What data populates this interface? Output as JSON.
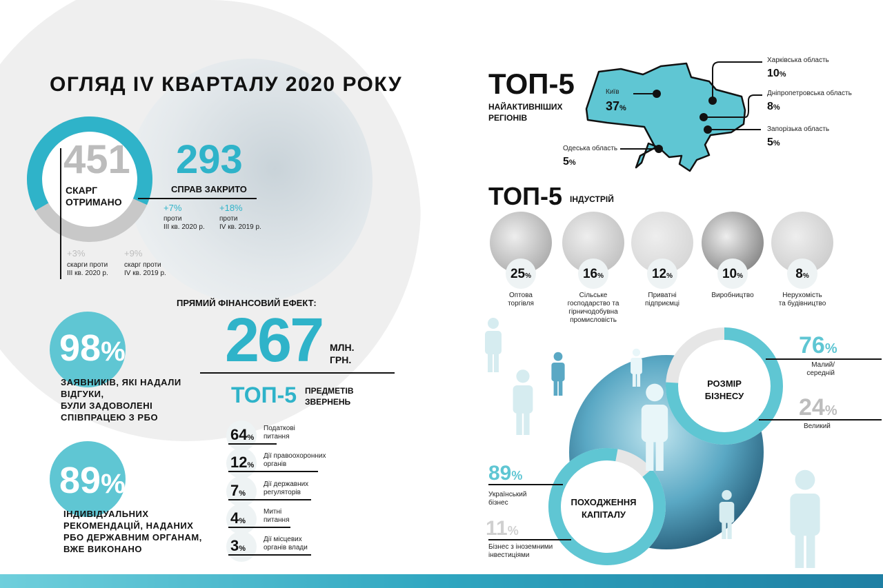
{
  "title": "ОГЛЯД IV КВАРТАЛУ 2020 РОКУ",
  "colors": {
    "accent": "#2fb3c9",
    "light_accent": "#5fc6d3",
    "gray": "#bdbdbd"
  },
  "complaints": {
    "value": "451",
    "label1": "СКАРГ",
    "label2": "ОТРИМАНО",
    "share_closed": 0.65,
    "changes": [
      {
        "pct": "+3%",
        "line1": "скарги проти",
        "line2": "III кв. 2020 р."
      },
      {
        "pct": "+9%",
        "line1": "скарг проти",
        "line2": "IV кв. 2019 р."
      }
    ]
  },
  "closed": {
    "value": "293",
    "label": "СПРАВ ЗАКРИТО",
    "changes": [
      {
        "pct": "+7%",
        "line1": "проти",
        "line2": "III кв. 2020 р."
      },
      {
        "pct": "+18%",
        "line1": "проти",
        "line2": "IV кв. 2019 р."
      }
    ]
  },
  "financial": {
    "heading": "ПРЯМИЙ ФІНАНСОВИЙ ЕФЕКТ:",
    "value": "267",
    "unit1": "МЛН.",
    "unit2": "ГРН."
  },
  "satisfied": {
    "value": "98",
    "pct": "%",
    "lines": [
      "ЗАЯВНИКІВ, ЯКІ НАДАЛИ",
      "ВІДГУКИ,",
      "БУЛИ ЗАДОВОЛЕНІ",
      "СПІВПРАЦЕЮ З РБО"
    ]
  },
  "recommendations": {
    "value": "89",
    "pct": "%",
    "lines": [
      "ІНДИВІДУАЛЬНИХ",
      "РЕКОМЕНДАЦІЙ, НАДАНИХ",
      "РБО ДЕРЖАВНИМ ОРГАНАМ,",
      "ВЖЕ ВИКОНАНО"
    ]
  },
  "subjects": {
    "title": "ТОП-5",
    "subtitle1": "ПРЕДМЕТІВ",
    "subtitle2": "ЗВЕРНЕНЬ",
    "items": [
      {
        "value": "64",
        "line1": "Податкові",
        "line2": "питання"
      },
      {
        "value": "12",
        "line1": "Дії правоохоронних",
        "line2": "органів"
      },
      {
        "value": "7",
        "line1": "Дії державних",
        "line2": "регуляторів"
      },
      {
        "value": "4",
        "line1": "Митні",
        "line2": "питання"
      },
      {
        "value": "3",
        "line1": "Дії місцевих",
        "line2": "органів влади"
      }
    ]
  },
  "regions": {
    "title": "ТОП-5",
    "subtitle1": "НАЙАКТИВНІШИХ",
    "subtitle2": "РЕГІОНІВ",
    "items": [
      {
        "name": "Київ",
        "value": "37"
      },
      {
        "name": "Харківська область",
        "value": "10"
      },
      {
        "name": "Дніпропетровська область",
        "value": "8"
      },
      {
        "name": "Запорізька область",
        "value": "5"
      },
      {
        "name": "Одеська область",
        "value": "5"
      }
    ]
  },
  "industries": {
    "title": "ТОП-5",
    "subtitle": "ІНДУСТРІЙ",
    "items": [
      {
        "value": "25",
        "line1": "Оптова",
        "line2": "торгівля",
        "line3": ""
      },
      {
        "value": "16",
        "line1": "Сільське",
        "line2": "господарство та",
        "line3": "гірничодобувна",
        "line4": "промисловість"
      },
      {
        "value": "12",
        "line1": "Приватні",
        "line2": "підприємці"
      },
      {
        "value": "10",
        "line1": "Виробництво"
      },
      {
        "value": "8",
        "line1": "Нерухомість",
        "line2": "та будівництво"
      }
    ]
  },
  "business_size": {
    "label1": "РОЗМІР",
    "label2": "БІЗНЕСУ",
    "items": [
      {
        "value": "76",
        "line1": "Малий/",
        "line2": "середній"
      },
      {
        "value": "24",
        "line1": "Великий"
      }
    ]
  },
  "capital": {
    "label1": "ПОХОДЖЕННЯ",
    "label2": "КАПІТАЛУ",
    "items": [
      {
        "value": "89",
        "line1": "Український",
        "line2": "бізнес"
      },
      {
        "value": "11",
        "line1": "Бізнес з іноземними",
        "line2": "інвестиціями"
      }
    ]
  },
  "pct_sign": "%"
}
